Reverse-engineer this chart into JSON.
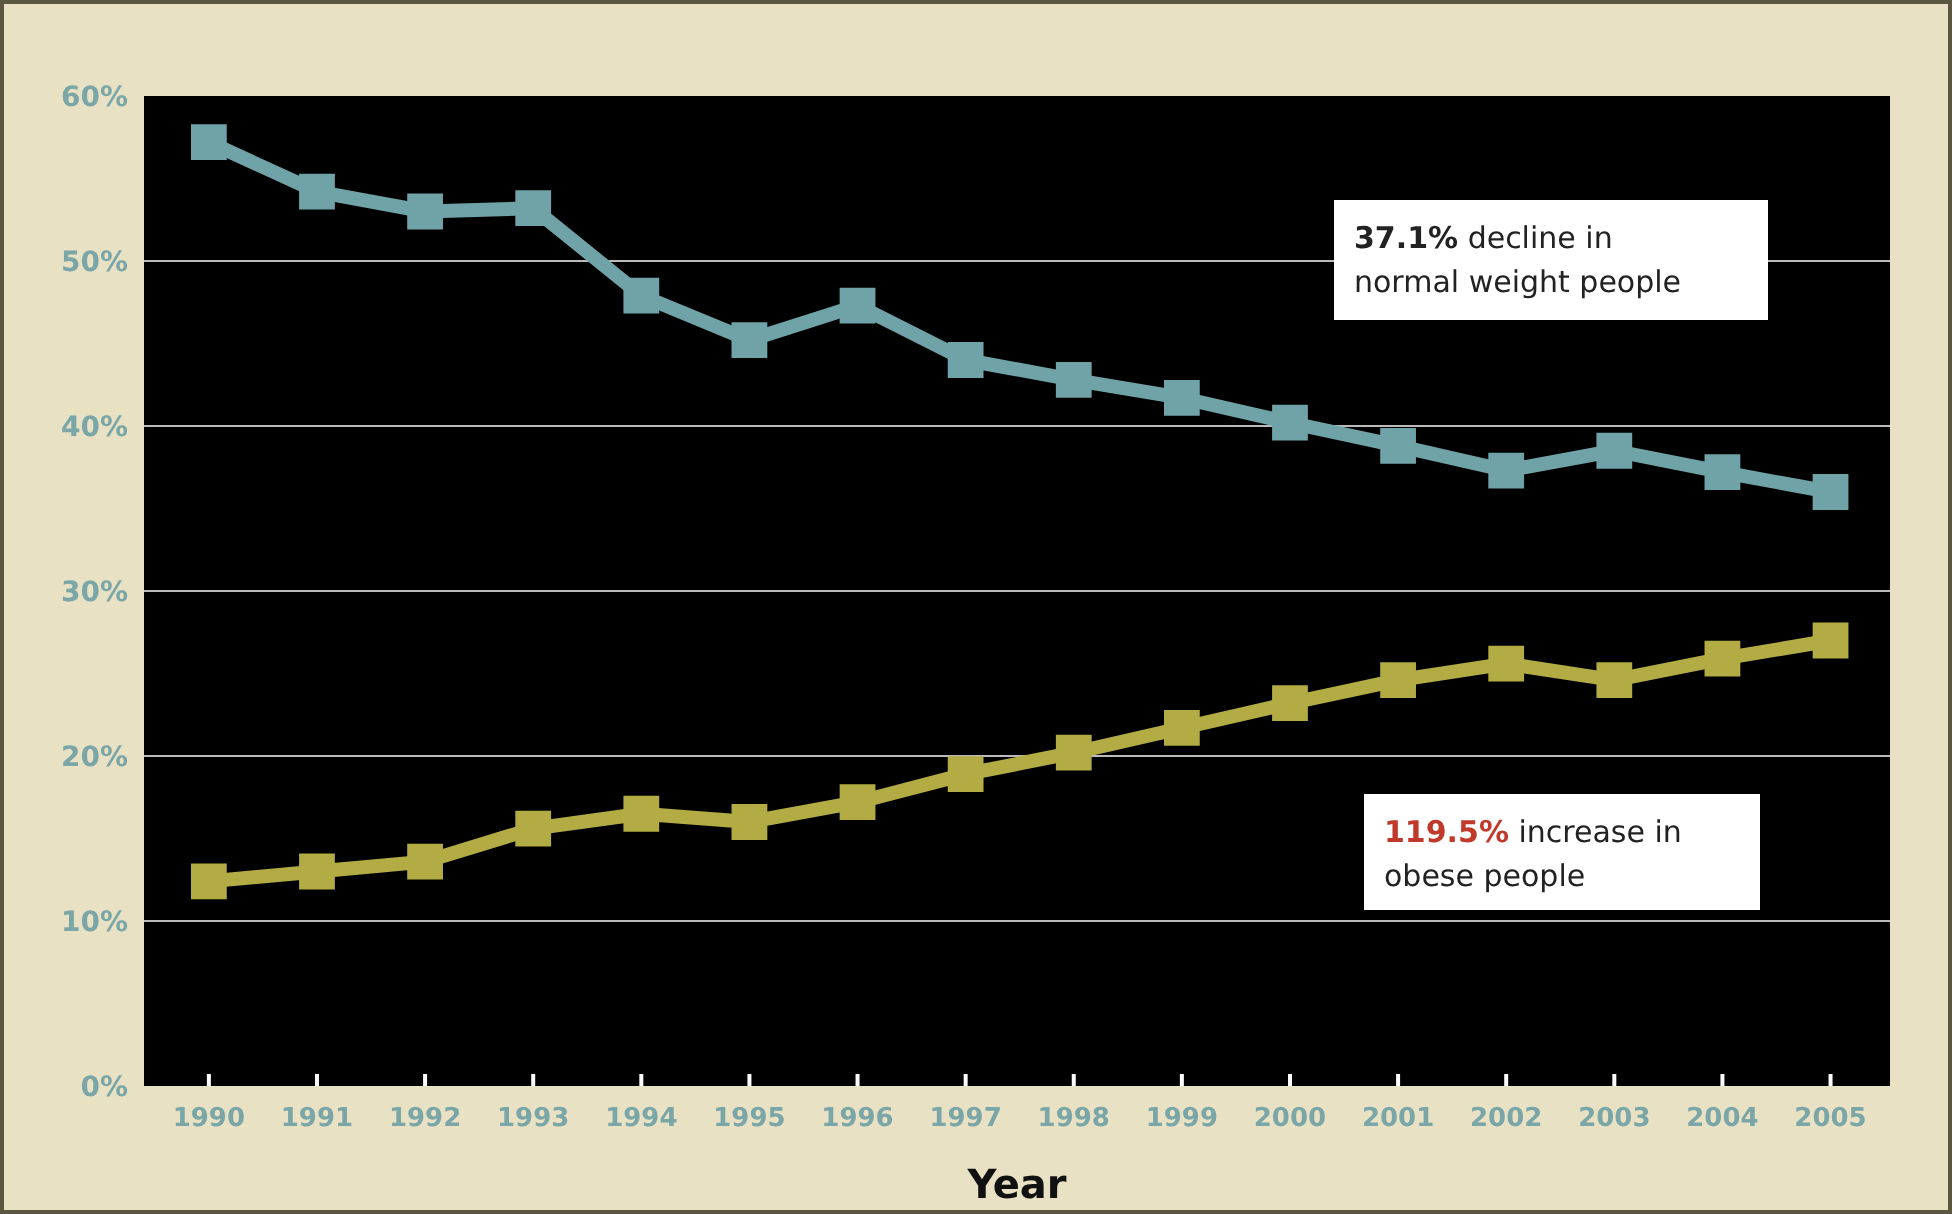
{
  "chart_data": {
    "type": "line",
    "xlabel": "Year",
    "x": [
      1990,
      1991,
      1992,
      1993,
      1994,
      1995,
      1996,
      1997,
      1998,
      1999,
      2000,
      2001,
      2002,
      2003,
      2004,
      2005
    ],
    "series": [
      {
        "color": "#6fa3a8",
        "values": [
          57.2,
          54.2,
          53.0,
          53.2,
          47.9,
          45.2,
          47.3,
          44.0,
          42.8,
          41.7,
          40.2,
          38.8,
          37.3,
          38.5,
          37.2,
          36.0
        ]
      },
      {
        "color": "#b3ac45",
        "values": [
          12.4,
          13.0,
          13.6,
          15.6,
          16.5,
          16.0,
          17.2,
          18.9,
          20.2,
          21.7,
          23.2,
          24.6,
          25.6,
          24.6,
          25.9,
          27.0
        ]
      }
    ],
    "xlim": [
      1989.4,
      2005.55
    ],
    "xticks": [
      1990,
      1991,
      1992,
      1993,
      1994,
      1995,
      1996,
      1997,
      1998,
      1999,
      2000,
      2001,
      2002,
      2003,
      2004,
      2005
    ],
    "ylim": [
      0,
      60
    ],
    "yticks": [
      {
        "value": 0,
        "label": "0%"
      },
      {
        "value": 10,
        "label": "10%"
      },
      {
        "value": 20,
        "label": "20%"
      },
      {
        "value": 30,
        "label": "30%"
      },
      {
        "value": 40,
        "label": "40%"
      },
      {
        "value": 50,
        "label": "50%"
      },
      {
        "value": 60,
        "label": "60%"
      }
    ],
    "grid": "y",
    "marker": "square",
    "line_style": "solid",
    "annotations": [
      "37.1% decline in\nnormal weight people",
      "119.5% increase in\nobese people"
    ]
  }
}
